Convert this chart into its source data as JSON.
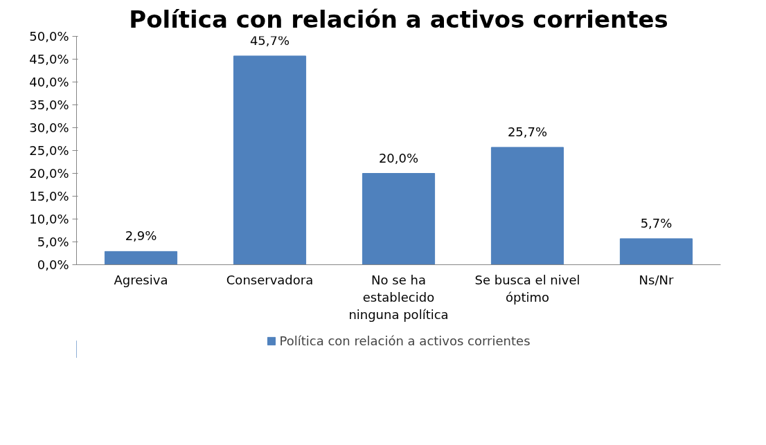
{
  "chart_data": {
    "type": "bar",
    "title": "Política con relación a activos corrientes",
    "categories": [
      "Agresiva",
      "Conservadora",
      "No se ha establecido ninguna política",
      "Se busca el nivel óptimo",
      "Ns/Nr"
    ],
    "series": [
      {
        "name": "Política con relación a activos corrientes",
        "color": "#4f81bd",
        "values": [
          2.9,
          45.7,
          20.0,
          25.7,
          5.7
        ],
        "value_labels": [
          "2,9%",
          "45,7%",
          "20,0%",
          "25,7%",
          "5,7%"
        ]
      }
    ],
    "ylim": [
      0,
      50
    ],
    "yticks": [
      {
        "value": 0,
        "label": "0,0%"
      },
      {
        "value": 5,
        "label": "5,0%"
      },
      {
        "value": 10,
        "label": "10,0%"
      },
      {
        "value": 15,
        "label": "15,0%"
      },
      {
        "value": 20,
        "label": "20,0%"
      },
      {
        "value": 25,
        "label": "25,0%"
      },
      {
        "value": 30,
        "label": "30,0%"
      },
      {
        "value": 35,
        "label": "35,0%"
      },
      {
        "value": 40,
        "label": "40,0%"
      },
      {
        "value": 45,
        "label": "45,0%"
      },
      {
        "value": 50,
        "label": "50,0%"
      }
    ],
    "grid": false,
    "legend": "bottom"
  }
}
